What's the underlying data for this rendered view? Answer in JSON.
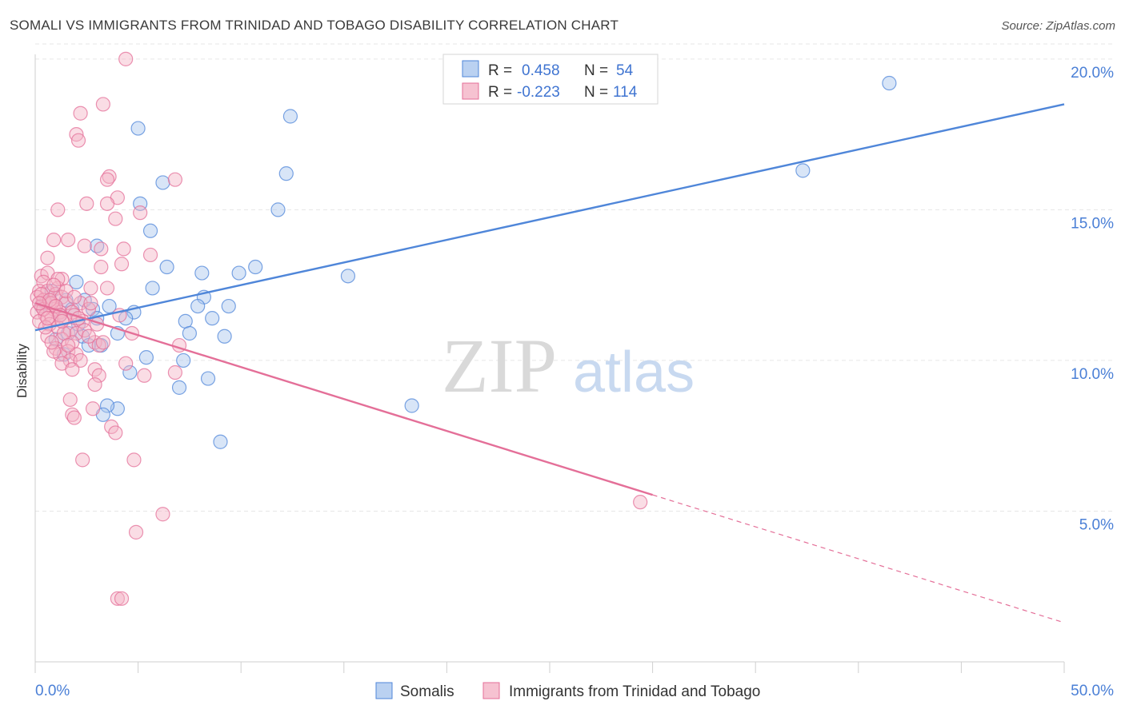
{
  "header": {
    "title": "SOMALI VS IMMIGRANTS FROM TRINIDAD AND TOBAGO DISABILITY CORRELATION CHART",
    "source": "Source: ZipAtlas.com"
  },
  "watermark": {
    "zip": "ZIP",
    "atlas": "atlas"
  },
  "legend_top": [
    {
      "r_label": "R = ",
      "r_value": "0.458",
      "n_label": "N = ",
      "n_value": "54",
      "color": "#a9c6ee"
    },
    {
      "r_label": "R = ",
      "r_value": "-0.223",
      "n_label": "N = ",
      "n_value": "114",
      "color": "#f4b3c6"
    }
  ],
  "legend_bottom": [
    {
      "label": "Somalis",
      "color": "#a9c6ee"
    },
    {
      "label": "Immigrants from Trinidad and Tobago",
      "color": "#f4b3c6"
    }
  ],
  "chart_data": {
    "type": "scatter",
    "title": "SOMALI VS IMMIGRANTS FROM TRINIDAD AND TOBAGO DISABILITY CORRELATION CHART",
    "xlabel": "",
    "ylabel": "Disability",
    "xlim": [
      0,
      50
    ],
    "ylim": [
      0,
      20.5
    ],
    "x_tick_labels": [
      "0.0%",
      "50.0%"
    ],
    "y_ticks": [
      5,
      10,
      15,
      20
    ],
    "y_tick_labels": [
      "5.0%",
      "10.0%",
      "15.0%",
      "20.0%"
    ],
    "grid": true,
    "legend_position": "top-center",
    "series": [
      {
        "name": "Somalis",
        "color": "#4f86d9",
        "fill": "#a9c6ee",
        "trend": {
          "x": [
            0,
            50
          ],
          "y": [
            11.0,
            18.5
          ],
          "dashed_from": null
        },
        "points": [
          [
            41.5,
            19.2
          ],
          [
            37.3,
            16.3
          ],
          [
            12.4,
            18.1
          ],
          [
            12.2,
            16.2
          ],
          [
            11.8,
            15.0
          ],
          [
            5.0,
            17.7
          ],
          [
            6.2,
            15.9
          ],
          [
            5.1,
            15.2
          ],
          [
            5.6,
            14.3
          ],
          [
            3.0,
            13.8
          ],
          [
            6.4,
            13.1
          ],
          [
            8.1,
            12.9
          ],
          [
            9.9,
            12.9
          ],
          [
            10.7,
            13.1
          ],
          [
            15.2,
            12.8
          ],
          [
            2.0,
            12.6
          ],
          [
            5.7,
            12.4
          ],
          [
            8.2,
            12.1
          ],
          [
            1.5,
            12.0
          ],
          [
            7.9,
            11.8
          ],
          [
            9.4,
            11.8
          ],
          [
            3.6,
            11.8
          ],
          [
            4.8,
            11.6
          ],
          [
            1.8,
            11.7
          ],
          [
            2.8,
            11.7
          ],
          [
            3.0,
            11.4
          ],
          [
            4.4,
            11.4
          ],
          [
            7.3,
            11.3
          ],
          [
            8.6,
            11.4
          ],
          [
            4.0,
            10.9
          ],
          [
            7.5,
            10.9
          ],
          [
            9.2,
            10.8
          ],
          [
            2.3,
            10.8
          ],
          [
            1.0,
            10.7
          ],
          [
            3.2,
            10.5
          ],
          [
            2.6,
            10.5
          ],
          [
            5.4,
            10.1
          ],
          [
            7.2,
            10.0
          ],
          [
            1.4,
            10.2
          ],
          [
            4.6,
            9.6
          ],
          [
            8.4,
            9.4
          ],
          [
            7.0,
            9.1
          ],
          [
            4.0,
            8.4
          ],
          [
            3.5,
            8.5
          ],
          [
            3.3,
            8.2
          ],
          [
            18.3,
            8.5
          ],
          [
            9.0,
            7.3
          ],
          [
            0.5,
            11.9
          ],
          [
            0.8,
            12.3
          ],
          [
            1.2,
            11.5
          ],
          [
            2.1,
            11.2
          ],
          [
            0.3,
            11.8
          ],
          [
            1.6,
            10.9
          ],
          [
            2.4,
            12.0
          ]
        ]
      },
      {
        "name": "Immigrants from Trinidad and Tobago",
        "color": "#e46f98",
        "fill": "#f4b3c6",
        "trend": {
          "x": [
            0,
            50
          ],
          "y": [
            11.9,
            1.3
          ],
          "dashed_from": 30
        },
        "points": [
          [
            4.4,
            20.0
          ],
          [
            3.3,
            18.5
          ],
          [
            2.2,
            18.2
          ],
          [
            2.0,
            17.5
          ],
          [
            2.1,
            17.3
          ],
          [
            3.6,
            16.1
          ],
          [
            6.8,
            16.0
          ],
          [
            3.5,
            16.0
          ],
          [
            4.0,
            15.4
          ],
          [
            3.5,
            15.2
          ],
          [
            2.5,
            15.2
          ],
          [
            1.1,
            15.0
          ],
          [
            5.1,
            14.9
          ],
          [
            3.9,
            14.7
          ],
          [
            0.9,
            14.0
          ],
          [
            1.6,
            14.0
          ],
          [
            2.4,
            13.8
          ],
          [
            3.2,
            13.7
          ],
          [
            4.3,
            13.7
          ],
          [
            5.6,
            13.5
          ],
          [
            0.6,
            13.4
          ],
          [
            4.2,
            13.2
          ],
          [
            3.2,
            13.1
          ],
          [
            0.3,
            12.8
          ],
          [
            0.6,
            12.9
          ],
          [
            1.3,
            12.7
          ],
          [
            0.4,
            12.6
          ],
          [
            1.1,
            12.4
          ],
          [
            2.7,
            12.4
          ],
          [
            3.5,
            12.4
          ],
          [
            0.2,
            12.3
          ],
          [
            0.6,
            12.3
          ],
          [
            1.0,
            12.2
          ],
          [
            1.3,
            12.1
          ],
          [
            0.1,
            12.1
          ],
          [
            0.4,
            12.0
          ],
          [
            0.7,
            11.9
          ],
          [
            1.5,
            11.9
          ],
          [
            2.2,
            11.9
          ],
          [
            0.3,
            11.8
          ],
          [
            0.9,
            11.7
          ],
          [
            1.2,
            11.6
          ],
          [
            1.8,
            11.6
          ],
          [
            2.6,
            11.7
          ],
          [
            0.1,
            11.6
          ],
          [
            0.5,
            11.5
          ],
          [
            0.8,
            11.4
          ],
          [
            1.4,
            11.4
          ],
          [
            1.9,
            11.5
          ],
          [
            2.3,
            11.3
          ],
          [
            0.2,
            11.3
          ],
          [
            0.7,
            11.2
          ],
          [
            1.1,
            11.1
          ],
          [
            1.7,
            11.0
          ],
          [
            2.0,
            10.9
          ],
          [
            4.7,
            10.9
          ],
          [
            0.6,
            10.8
          ],
          [
            1.3,
            10.7
          ],
          [
            1.8,
            10.6
          ],
          [
            2.9,
            10.6
          ],
          [
            3.1,
            10.5
          ],
          [
            7.0,
            10.5
          ],
          [
            1.0,
            10.4
          ],
          [
            1.6,
            10.3
          ],
          [
            2.0,
            10.2
          ],
          [
            1.2,
            10.2
          ],
          [
            0.9,
            10.3
          ],
          [
            1.7,
            10.0
          ],
          [
            2.2,
            10.0
          ],
          [
            1.3,
            9.9
          ],
          [
            4.4,
            9.9
          ],
          [
            1.8,
            9.7
          ],
          [
            2.9,
            9.7
          ],
          [
            5.3,
            9.5
          ],
          [
            3.1,
            9.5
          ],
          [
            6.8,
            9.6
          ],
          [
            2.9,
            9.2
          ],
          [
            1.7,
            8.7
          ],
          [
            2.8,
            8.4
          ],
          [
            1.8,
            8.2
          ],
          [
            1.9,
            8.1
          ],
          [
            3.7,
            7.8
          ],
          [
            3.9,
            7.6
          ],
          [
            2.3,
            6.7
          ],
          [
            4.8,
            6.7
          ],
          [
            6.2,
            4.9
          ],
          [
            4.9,
            4.3
          ],
          [
            4.0,
            2.1
          ],
          [
            4.2,
            2.1
          ],
          [
            29.4,
            5.3
          ],
          [
            0.4,
            11.7
          ],
          [
            0.8,
            11.9
          ],
          [
            1.5,
            12.3
          ],
          [
            0.3,
            12.2
          ],
          [
            0.7,
            12.0
          ],
          [
            1.0,
            11.8
          ],
          [
            2.4,
            11.0
          ],
          [
            1.9,
            12.1
          ],
          [
            0.5,
            11.1
          ],
          [
            1.1,
            12.7
          ],
          [
            2.6,
            10.8
          ],
          [
            0.8,
            10.6
          ],
          [
            1.4,
            10.9
          ],
          [
            3.3,
            10.6
          ],
          [
            0.6,
            11.4
          ],
          [
            1.2,
            11.5
          ],
          [
            2.1,
            11.4
          ],
          [
            0.2,
            11.9
          ],
          [
            1.6,
            10.5
          ],
          [
            3.0,
            11.2
          ],
          [
            2.7,
            11.9
          ],
          [
            4.1,
            11.5
          ],
          [
            0.9,
            12.5
          ],
          [
            1.3,
            11.3
          ]
        ]
      }
    ]
  }
}
